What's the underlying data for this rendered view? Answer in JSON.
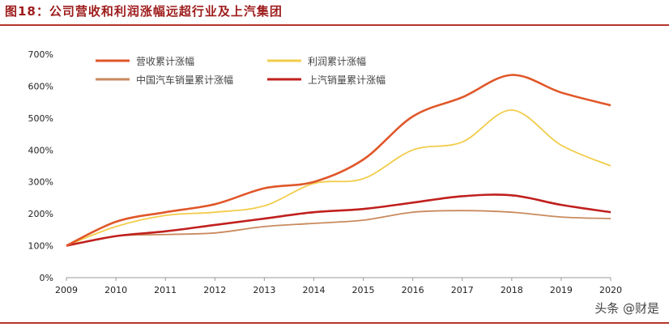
{
  "chart_data": {
    "type": "line",
    "title": "图18：公司营收和利润涨幅远超行业及上汽集团",
    "x": [
      "2009",
      "2010",
      "2011",
      "2012",
      "2013",
      "2014",
      "2015",
      "2016",
      "2017",
      "2018",
      "2019",
      "2020"
    ],
    "ylim": [
      0,
      700
    ],
    "yticks": [
      "0%",
      "100%",
      "200%",
      "300%",
      "400%",
      "500%",
      "600%",
      "700%"
    ],
    "grid": false,
    "legend": "top-left",
    "series": [
      {
        "name": "营收累计涨幅",
        "color": "#e0572a",
        "values": [
          100,
          175,
          205,
          230,
          280,
          300,
          370,
          505,
          565,
          635,
          580,
          540
        ]
      },
      {
        "name": "利润累计涨幅",
        "color": "#f2cc4a",
        "values": [
          100,
          160,
          195,
          205,
          225,
          295,
          310,
          400,
          425,
          525,
          415,
          350
        ]
      },
      {
        "name": "中国汽车销量累计涨幅",
        "color": "#c98a5e",
        "values": [
          100,
          130,
          135,
          140,
          160,
          170,
          180,
          205,
          210,
          205,
          190,
          185
        ]
      },
      {
        "name": "上汽销量累计涨幅",
        "color": "#c0201e",
        "values": [
          100,
          130,
          145,
          165,
          185,
          205,
          215,
          235,
          255,
          258,
          228,
          205
        ]
      }
    ]
  },
  "watermark": "头条 @财是"
}
